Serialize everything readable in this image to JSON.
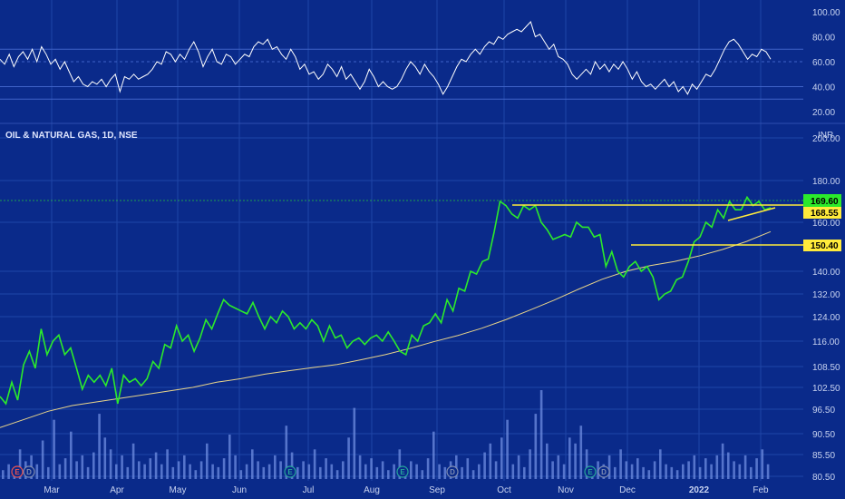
{
  "symbol_title": "OIL & NATURAL GAS, 1D, NSE",
  "currency": "INR",
  "colors": {
    "background": "#0a2a8a",
    "price": "#2bea2b",
    "ma": "#e8d48a",
    "rsi": "#ffffff",
    "volume": "#6f8de0",
    "levels": "#ffeb3b",
    "last_price_badge": "#2bea2b"
  },
  "chart_data": [
    {
      "type": "line",
      "panel": "oscillator",
      "yticks": [
        "100.00",
        "80.00",
        "60.00",
        "40.00",
        "20.00"
      ],
      "ylim": [
        10,
        105
      ],
      "reference_lines": [
        70,
        60,
        40,
        30
      ],
      "series": [
        {
          "values": [
            62,
            58,
            66,
            56,
            64,
            68,
            62,
            70,
            60,
            72,
            66,
            58,
            62,
            54,
            60,
            52,
            44,
            48,
            42,
            40,
            44,
            42,
            46,
            40,
            46,
            50,
            36,
            48,
            46,
            50,
            46,
            48,
            50,
            54,
            60,
            58,
            68,
            66,
            60,
            66,
            62,
            70,
            76,
            68,
            56,
            64,
            70,
            60,
            58,
            66,
            64,
            58,
            62,
            66,
            64,
            72,
            76,
            74,
            78,
            70,
            72,
            66,
            62,
            70,
            64,
            54,
            58,
            50,
            52,
            46,
            50,
            58,
            54,
            48,
            56,
            46,
            50,
            44,
            38,
            44,
            54,
            48,
            40,
            44,
            40,
            38,
            40,
            46,
            54,
            60,
            56,
            50,
            58,
            52,
            48,
            42,
            34,
            40,
            48,
            56,
            62,
            60,
            66,
            70,
            66,
            72,
            76,
            74,
            80,
            78,
            82,
            84,
            86,
            84,
            88,
            92,
            80,
            82,
            76,
            70,
            74,
            64,
            62,
            58,
            50,
            46,
            50,
            54,
            50,
            60,
            54,
            58,
            52,
            58,
            54,
            60,
            54,
            46,
            52,
            44,
            40,
            42,
            38,
            42,
            46,
            40,
            44,
            36,
            40,
            34,
            42,
            38,
            44,
            50,
            48,
            54,
            62,
            70,
            76,
            78,
            74,
            68,
            62,
            66,
            64,
            70,
            68,
            62
          ]
        }
      ]
    },
    {
      "type": "line",
      "panel": "price",
      "x_labels": [
        "Mar",
        "Apr",
        "May",
        "Jun",
        "Jul",
        "Aug",
        "Sep",
        "Oct",
        "Nov",
        "Dec",
        "2022",
        "Feb"
      ],
      "yticks": [
        "200.00",
        "180.00",
        "160.00",
        "140.00",
        "132.00",
        "124.00",
        "116.00",
        "108.50",
        "102.50",
        "96.50",
        "90.50",
        "85.50",
        "80.50"
      ],
      "last_price": 169.6,
      "levels": [
        168.55,
        150.4
      ],
      "series": [
        {
          "name": "OIL & NATURAL GAS",
          "values": [
            100,
            98,
            104,
            99,
            109,
            113,
            108,
            120,
            112,
            116,
            118,
            112,
            114,
            108,
            102,
            106,
            104,
            106,
            103,
            108,
            98,
            106,
            104,
            105,
            103,
            105,
            110,
            108,
            115,
            114,
            121,
            116,
            118,
            113,
            117,
            123,
            120,
            125,
            130,
            128,
            127,
            126,
            125,
            129,
            124,
            120,
            124,
            122,
            126,
            124,
            120,
            122,
            120,
            123,
            121,
            116,
            121,
            117,
            118,
            114,
            116,
            117,
            115,
            117,
            118,
            116,
            119,
            116,
            113,
            112,
            118,
            116,
            121,
            122,
            125,
            122,
            130,
            126,
            134,
            133,
            140,
            139,
            144,
            145,
            156,
            170,
            168,
            164,
            162,
            168,
            166,
            168,
            160,
            157,
            153,
            154,
            155,
            154,
            160,
            158,
            158,
            154,
            155,
            142,
            148,
            140,
            138,
            142,
            144,
            140,
            142,
            138,
            130,
            132,
            133,
            137,
            138,
            144,
            152,
            154,
            160,
            158,
            166,
            162,
            170,
            166,
            166,
            172,
            168,
            170,
            166,
            167
          ]
        },
        {
          "name": "Moving Average",
          "values": [
            92,
            94,
            96,
            97.5,
            98.5,
            99.5,
            100.5,
            101.5,
            102.5,
            104,
            105,
            106.3,
            107.3,
            108.2,
            109.1,
            110.5,
            112,
            113.8,
            115.8,
            117.8,
            120.2,
            123,
            126.3,
            129.8,
            133.6,
            137.2,
            140,
            142.3,
            144,
            146.2,
            148.9,
            152.2,
            156.2
          ]
        }
      ]
    },
    {
      "type": "bar",
      "panel": "volume",
      "values": [
        3,
        5,
        4,
        10,
        6,
        8,
        5,
        13,
        4,
        20,
        5,
        7,
        16,
        6,
        8,
        4,
        9,
        22,
        14,
        10,
        5,
        8,
        4,
        12,
        6,
        5,
        7,
        9,
        5,
        10,
        4,
        6,
        8,
        5,
        3,
        6,
        12,
        5,
        4,
        7,
        15,
        8,
        3,
        5,
        10,
        6,
        4,
        5,
        8,
        6,
        18,
        9,
        4,
        6,
        5,
        10,
        4,
        7,
        5,
        3,
        6,
        14,
        24,
        8,
        5,
        7,
        4,
        6,
        3,
        5,
        10,
        4,
        6,
        5,
        3,
        7,
        16,
        5,
        4,
        6,
        8,
        4,
        7,
        3,
        5,
        9,
        12,
        6,
        14,
        20,
        5,
        8,
        4,
        10,
        22,
        30,
        12,
        6,
        8,
        5,
        14,
        12,
        18,
        10,
        4,
        6,
        5,
        8,
        4,
        10,
        6,
        5,
        7,
        4,
        3,
        6,
        10,
        5,
        4,
        3,
        5,
        6,
        8,
        4,
        7,
        5,
        8,
        12,
        9,
        6,
        5,
        8,
        4,
        7,
        10,
        5
      ]
    }
  ],
  "events": [
    {
      "label": "E",
      "color": "#ef5350"
    },
    {
      "label": "D",
      "color": "#7f8db3"
    },
    {
      "label": "E",
      "color": "#26a69a"
    },
    {
      "label": "E",
      "color": "#26a69a"
    },
    {
      "label": "D",
      "color": "#7f8db3"
    },
    {
      "label": "E",
      "color": "#26a69a"
    },
    {
      "label": "D",
      "color": "#7f8db3"
    }
  ]
}
